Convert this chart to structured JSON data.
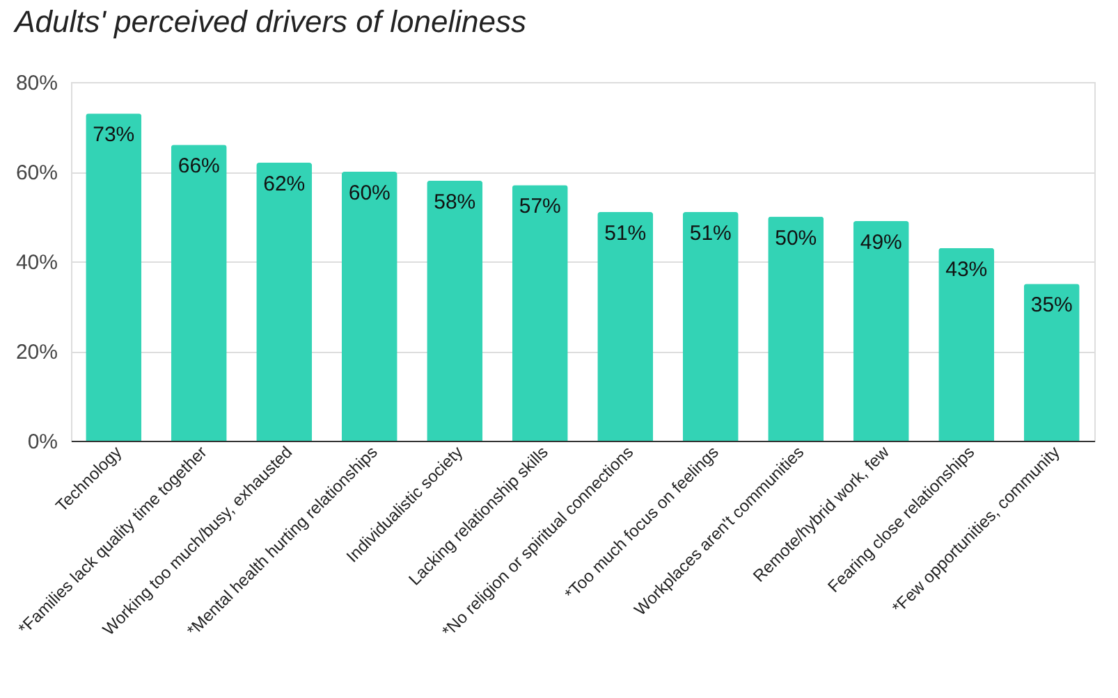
{
  "chart_data": {
    "type": "bar",
    "title": "Adults' perceived drivers of loneliness",
    "categories": [
      "Technology",
      "*Families lack quality time together",
      "Working too much/busy, exhausted",
      "*Mental health hurting relationships",
      "Individualistic society",
      "Lacking relationship skills",
      "*No religion or spiritual connections",
      "*Too much focus on feelings",
      "Workplaces aren't communities",
      "Remote/hybrid work, few",
      "Fearing close relationships",
      "*Few opportunities, community"
    ],
    "values": [
      73,
      66,
      62,
      60,
      58,
      57,
      51,
      51,
      50,
      49,
      43,
      35
    ],
    "value_labels": [
      "73%",
      "66%",
      "62%",
      "60%",
      "58%",
      "57%",
      "51%",
      "51%",
      "50%",
      "49%",
      "43%",
      "35%"
    ],
    "color": "#33d3b5",
    "ylim": [
      0,
      80
    ],
    "yticks": [
      {
        "value": 0,
        "label": "0%"
      },
      {
        "value": 20,
        "label": "20%"
      },
      {
        "value": 40,
        "label": "40%"
      },
      {
        "value": 60,
        "label": "60%"
      },
      {
        "value": 80,
        "label": "80%"
      }
    ],
    "grid": "y"
  }
}
